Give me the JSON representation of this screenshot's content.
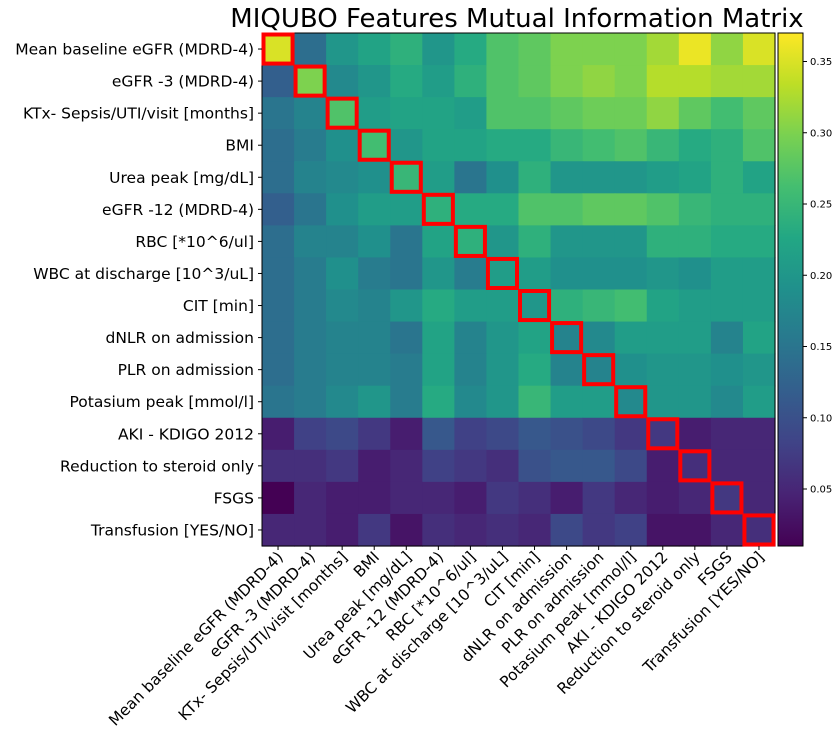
{
  "chart_data": {
    "type": "heatmap",
    "title": "MIQUBO Features Mutual Information Matrix",
    "labels": [
      "Mean baseline eGFR (MDRD-4)",
      "eGFR -3 (MDRD-4)",
      "KTx- Sepsis/UTI/visit [months]",
      "BMI",
      "Urea peak [mg/dL]",
      "eGFR -12 (MDRD-4)",
      "RBC [*10^6/ul]",
      "WBC at discharge [10^3/uL]",
      "CIT [min]",
      "dNLR on admission",
      "PLR on admission",
      "Potasium peak [mmol/l]",
      "AKI - KDIGO 2012",
      "Reduction to steroid only",
      "FSGS",
      "Transfusion [YES/NO]"
    ],
    "values": [
      [
        0.35,
        0.14,
        0.2,
        0.22,
        0.24,
        0.2,
        0.23,
        0.27,
        0.28,
        0.3,
        0.3,
        0.3,
        0.32,
        0.36,
        0.31,
        0.35
      ],
      [
        0.12,
        0.3,
        0.18,
        0.2,
        0.23,
        0.21,
        0.24,
        0.27,
        0.28,
        0.3,
        0.31,
        0.3,
        0.33,
        0.33,
        0.32,
        0.32
      ],
      [
        0.15,
        0.17,
        0.27,
        0.21,
        0.22,
        0.22,
        0.21,
        0.27,
        0.27,
        0.28,
        0.29,
        0.29,
        0.31,
        0.28,
        0.26,
        0.28
      ],
      [
        0.14,
        0.16,
        0.19,
        0.26,
        0.2,
        0.22,
        0.22,
        0.23,
        0.23,
        0.25,
        0.26,
        0.27,
        0.25,
        0.23,
        0.24,
        0.27
      ],
      [
        0.14,
        0.17,
        0.18,
        0.19,
        0.25,
        0.21,
        0.15,
        0.19,
        0.24,
        0.2,
        0.2,
        0.2,
        0.21,
        0.22,
        0.24,
        0.22
      ],
      [
        0.12,
        0.15,
        0.19,
        0.21,
        0.21,
        0.24,
        0.23,
        0.23,
        0.27,
        0.27,
        0.28,
        0.28,
        0.27,
        0.25,
        0.24,
        0.24
      ],
      [
        0.14,
        0.17,
        0.17,
        0.19,
        0.15,
        0.22,
        0.24,
        0.2,
        0.24,
        0.2,
        0.2,
        0.2,
        0.24,
        0.24,
        0.23,
        0.23
      ],
      [
        0.14,
        0.16,
        0.19,
        0.16,
        0.15,
        0.2,
        0.16,
        0.21,
        0.21,
        0.19,
        0.19,
        0.19,
        0.2,
        0.19,
        0.21,
        0.21
      ],
      [
        0.14,
        0.16,
        0.18,
        0.17,
        0.2,
        0.23,
        0.21,
        0.21,
        0.2,
        0.24,
        0.25,
        0.26,
        0.22,
        0.21,
        0.21,
        0.21
      ],
      [
        0.14,
        0.16,
        0.17,
        0.17,
        0.15,
        0.22,
        0.17,
        0.2,
        0.22,
        0.17,
        0.18,
        0.21,
        0.21,
        0.21,
        0.17,
        0.22
      ],
      [
        0.14,
        0.16,
        0.17,
        0.17,
        0.16,
        0.22,
        0.17,
        0.2,
        0.23,
        0.17,
        0.17,
        0.19,
        0.2,
        0.2,
        0.19,
        0.2
      ],
      [
        0.15,
        0.16,
        0.18,
        0.2,
        0.16,
        0.23,
        0.18,
        0.2,
        0.25,
        0.21,
        0.21,
        0.18,
        0.2,
        0.2,
        0.18,
        0.21
      ],
      [
        0.04,
        0.08,
        0.09,
        0.07,
        0.04,
        0.11,
        0.08,
        0.09,
        0.11,
        0.1,
        0.09,
        0.07,
        0.07,
        0.04,
        0.05,
        0.05
      ],
      [
        0.06,
        0.06,
        0.07,
        0.04,
        0.05,
        0.08,
        0.07,
        0.06,
        0.1,
        0.11,
        0.11,
        0.09,
        0.04,
        0.06,
        0.05,
        0.05
      ],
      [
        0.01,
        0.05,
        0.04,
        0.04,
        0.05,
        0.05,
        0.04,
        0.07,
        0.06,
        0.04,
        0.07,
        0.05,
        0.04,
        0.05,
        0.07,
        0.05
      ],
      [
        0.05,
        0.05,
        0.04,
        0.07,
        0.03,
        0.06,
        0.05,
        0.06,
        0.05,
        0.09,
        0.07,
        0.08,
        0.03,
        0.03,
        0.05,
        0.06
      ]
    ],
    "highlight": "diagonal",
    "highlight_color": "#ff0000",
    "colormap": "viridis",
    "colorbar": {
      "range": [
        0.01,
        0.37
      ],
      "ticks": [
        "0.05",
        "0.10",
        "0.15",
        "0.20",
        "0.25",
        "0.30",
        "0.35"
      ]
    }
  }
}
